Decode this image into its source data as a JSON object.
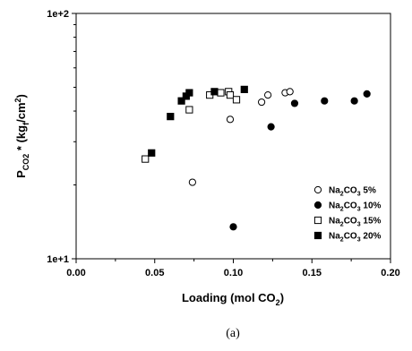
{
  "caption": "(a)",
  "chart_data": {
    "type": "scatter",
    "xlabel": "Loading (mol CO₂)",
    "ylabel": "Pₙₒ₂ * (kgf/cm²)",
    "ylabel_parts": {
      "base": "P",
      "sub1": "CO",
      "sub2": "2",
      "mid": " * (kg",
      "sub3": "f",
      "mid2": "/cm",
      "sup": "2",
      "end": ")"
    },
    "xlabel_parts": {
      "main": "Loading (mol CO",
      "sub": "2",
      "end": ")"
    },
    "xlim": [
      0.0,
      0.2
    ],
    "ylim": [
      10,
      100
    ],
    "y_scale": "log",
    "x_ticks": [
      "0.00",
      "0.05",
      "0.10",
      "0.15",
      "0.20"
    ],
    "y_ticks": [
      "1e+1",
      "1e+2"
    ],
    "grid": false,
    "legend_position": "bottom-right",
    "series": [
      {
        "name": "Na2CO3 5%",
        "name_parts": {
          "a": "Na",
          "b": "2",
          "c": "CO",
          "d": "3",
          "e": " 5%"
        },
        "marker": "open-circle",
        "points": [
          [
            0.074,
            20.5
          ],
          [
            0.098,
            37
          ],
          [
            0.118,
            43.5
          ],
          [
            0.122,
            46.5
          ],
          [
            0.133,
            47.5
          ],
          [
            0.136,
            48
          ]
        ]
      },
      {
        "name": "Na2CO3 10%",
        "name_parts": {
          "a": "Na",
          "b": "2",
          "c": "CO",
          "d": "3",
          "e": " 10%"
        },
        "marker": "filled-circle",
        "points": [
          [
            0.1,
            13.5
          ],
          [
            0.124,
            34.5
          ],
          [
            0.139,
            43
          ],
          [
            0.158,
            44
          ],
          [
            0.177,
            44
          ],
          [
            0.185,
            47
          ]
        ]
      },
      {
        "name": "Na2CO3 15%",
        "name_parts": {
          "a": "Na",
          "b": "2",
          "c": "CO",
          "d": "3",
          "e": " 15%"
        },
        "marker": "open-square",
        "points": [
          [
            0.044,
            25.5
          ],
          [
            0.072,
            40.5
          ],
          [
            0.085,
            46.5
          ],
          [
            0.092,
            47.5
          ],
          [
            0.097,
            48
          ],
          [
            0.098,
            46.5
          ],
          [
            0.102,
            44.5
          ]
        ]
      },
      {
        "name": "Na2CO3 20%",
        "name_parts": {
          "a": "Na",
          "b": "2",
          "c": "CO",
          "d": "3",
          "e": " 20%"
        },
        "marker": "filled-square",
        "points": [
          [
            0.048,
            27
          ],
          [
            0.06,
            38
          ],
          [
            0.067,
            44
          ],
          [
            0.07,
            46
          ],
          [
            0.072,
            47.5
          ],
          [
            0.088,
            48
          ],
          [
            0.107,
            49
          ]
        ]
      }
    ]
  }
}
